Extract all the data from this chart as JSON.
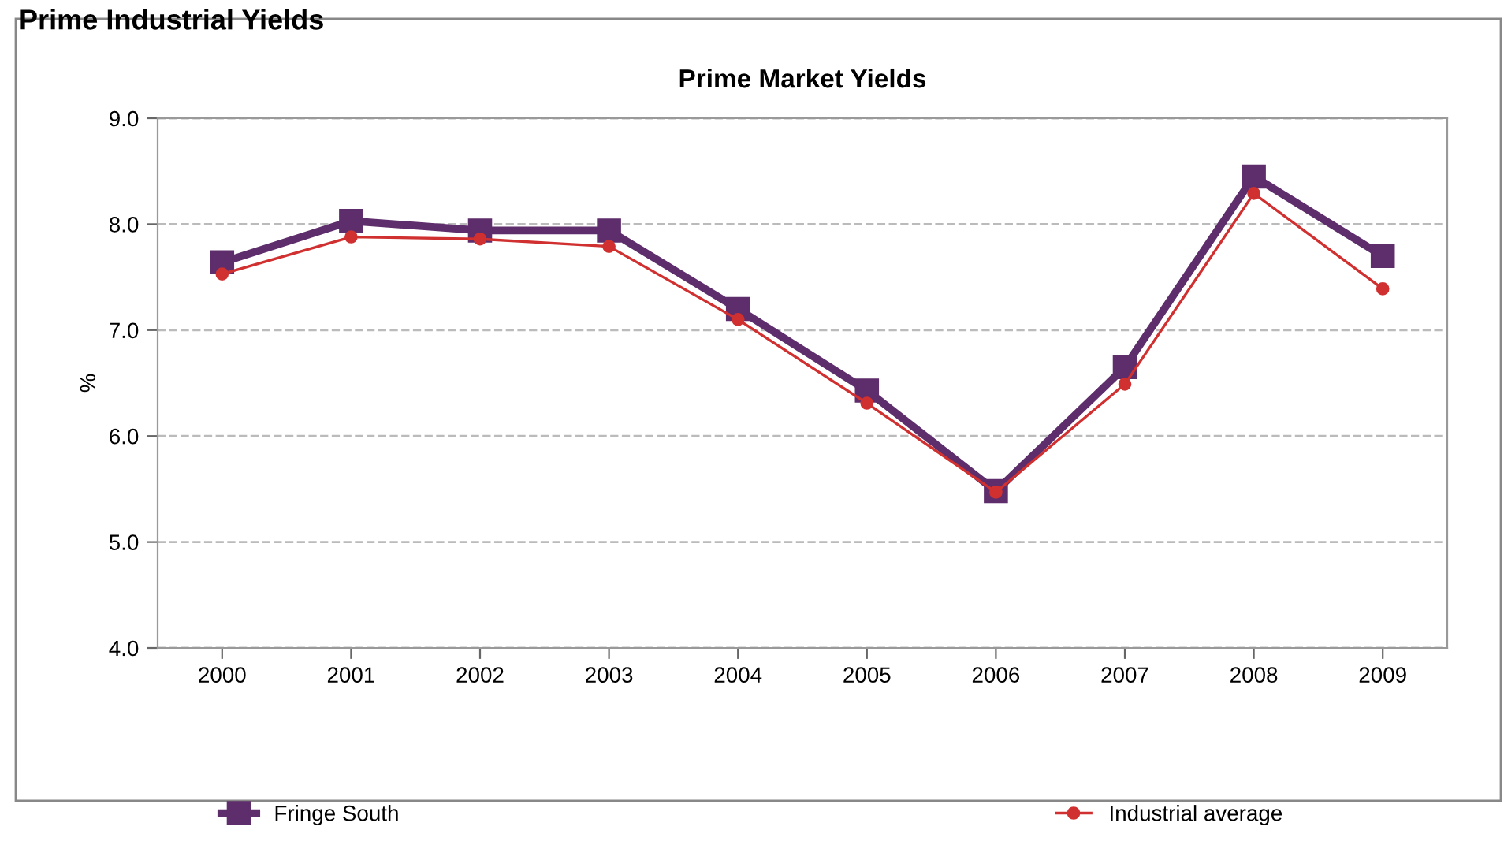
{
  "chart_data": {
    "type": "line",
    "subtitle": "Prime Industrial Yields",
    "title": "Prime Market Yields",
    "ylabel": "%",
    "categories": [
      "2000",
      "2001",
      "2002",
      "2003",
      "2004",
      "2005",
      "2006",
      "2007",
      "2008",
      "2009"
    ],
    "series": [
      {
        "name": "Fringe South",
        "color": "#5e2d6b",
        "marker": "square",
        "values": [
          7.64,
          8.03,
          7.94,
          7.94,
          7.2,
          6.43,
          5.48,
          6.65,
          8.45,
          7.7
        ]
      },
      {
        "name": "Industrial average",
        "color": "#d03030",
        "marker": "circle",
        "values": [
          7.53,
          7.88,
          7.86,
          7.79,
          7.1,
          6.31,
          5.47,
          6.49,
          8.29,
          7.39
        ]
      }
    ],
    "ylim": [
      4.0,
      9.0
    ],
    "yticks": [
      {
        "value": 4,
        "label": "4.0"
      },
      {
        "value": 5,
        "label": "5.0"
      },
      {
        "value": 6,
        "label": "6.0"
      },
      {
        "value": 7,
        "label": "7.0"
      },
      {
        "value": 8,
        "label": "8.0"
      },
      {
        "value": 9,
        "label": "9.0"
      }
    ],
    "grid": "y",
    "legend": "bottom",
    "line_style": "solid"
  }
}
